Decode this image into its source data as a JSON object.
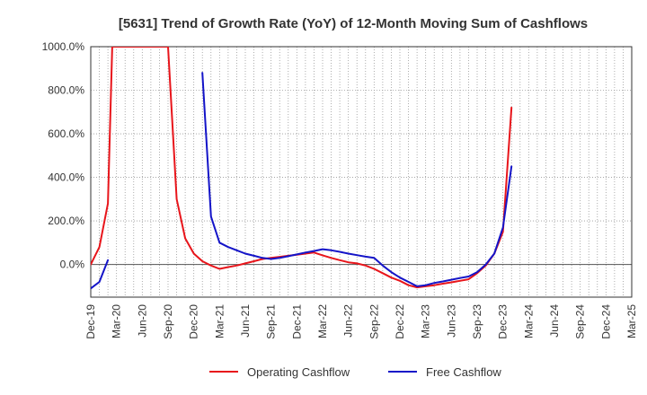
{
  "chart_data": {
    "type": "line",
    "title": "[5631]  Trend of Growth Rate (YoY) of 12-Month Moving Sum of Cashflows",
    "xlabel": "",
    "ylabel": "",
    "x_tick_labels": [
      "Dec-19",
      "Mar-20",
      "Jun-20",
      "Sep-20",
      "Dec-20",
      "Mar-21",
      "Jun-21",
      "Sep-21",
      "Dec-21",
      "Mar-22",
      "Jun-22",
      "Sep-22",
      "Dec-22",
      "Mar-23",
      "Jun-23",
      "Sep-23",
      "Dec-23",
      "Mar-24",
      "Jun-24",
      "Sep-24",
      "Dec-24",
      "Mar-25"
    ],
    "y_tick_labels": [
      "1000.0%",
      "800.0%",
      "600.0%",
      "400.0%",
      "200.0%",
      "0.0%"
    ],
    "y_ticks": [
      1000,
      800,
      600,
      400,
      200,
      0
    ],
    "xlim": [
      0,
      63
    ],
    "ylim": [
      -150,
      1000
    ],
    "grid": true,
    "legend_position": "bottom",
    "series": [
      {
        "name": "Operating Cashflow",
        "color": "#e8151b",
        "points": [
          [
            0,
            0
          ],
          [
            1,
            80
          ],
          [
            2,
            280
          ],
          [
            2.5,
            1000
          ],
          [
            9,
            1000
          ],
          [
            10,
            300
          ],
          [
            11,
            120
          ],
          [
            12,
            50
          ],
          [
            13,
            15
          ],
          [
            14,
            -5
          ],
          [
            15,
            -20
          ],
          [
            16,
            -12
          ],
          [
            17,
            -5
          ],
          [
            18,
            5
          ],
          [
            19,
            15
          ],
          [
            20,
            25
          ],
          [
            21,
            30
          ],
          [
            22,
            35
          ],
          [
            23,
            40
          ],
          [
            24,
            45
          ],
          [
            25,
            50
          ],
          [
            26,
            55
          ],
          [
            27,
            42
          ],
          [
            28,
            30
          ],
          [
            29,
            20
          ],
          [
            30,
            10
          ],
          [
            31,
            5
          ],
          [
            32,
            -5
          ],
          [
            33,
            -20
          ],
          [
            34,
            -40
          ],
          [
            35,
            -60
          ],
          [
            36,
            -75
          ],
          [
            37,
            -95
          ],
          [
            38,
            -105
          ],
          [
            39,
            -100
          ],
          [
            40,
            -95
          ],
          [
            41,
            -88
          ],
          [
            42,
            -82
          ],
          [
            43,
            -75
          ],
          [
            44,
            -68
          ],
          [
            45,
            -40
          ],
          [
            46,
            -5
          ],
          [
            47,
            50
          ],
          [
            48,
            150
          ],
          [
            49,
            720
          ]
        ]
      },
      {
        "name": "Free Cashflow",
        "color": "#1414c8",
        "points": [
          [
            0,
            -110
          ],
          [
            1,
            -80
          ],
          [
            2,
            20
          ],
          [
            null,
            null
          ],
          [
            13,
            880
          ],
          [
            14,
            220
          ],
          [
            15,
            100
          ],
          [
            16,
            80
          ],
          [
            17,
            65
          ],
          [
            18,
            50
          ],
          [
            19,
            40
          ],
          [
            20,
            30
          ],
          [
            21,
            25
          ],
          [
            22,
            30
          ],
          [
            23,
            38
          ],
          [
            24,
            46
          ],
          [
            25,
            55
          ],
          [
            26,
            62
          ],
          [
            27,
            70
          ],
          [
            28,
            65
          ],
          [
            29,
            58
          ],
          [
            30,
            50
          ],
          [
            31,
            43
          ],
          [
            32,
            36
          ],
          [
            33,
            30
          ],
          [
            34,
            -5
          ],
          [
            35,
            -35
          ],
          [
            36,
            -60
          ],
          [
            37,
            -80
          ],
          [
            38,
            -100
          ],
          [
            39,
            -95
          ],
          [
            40,
            -85
          ],
          [
            41,
            -78
          ],
          [
            42,
            -70
          ],
          [
            43,
            -62
          ],
          [
            44,
            -55
          ],
          [
            45,
            -35
          ],
          [
            46,
            0
          ],
          [
            47,
            50
          ],
          [
            48,
            170
          ],
          [
            49,
            450
          ]
        ]
      }
    ]
  }
}
